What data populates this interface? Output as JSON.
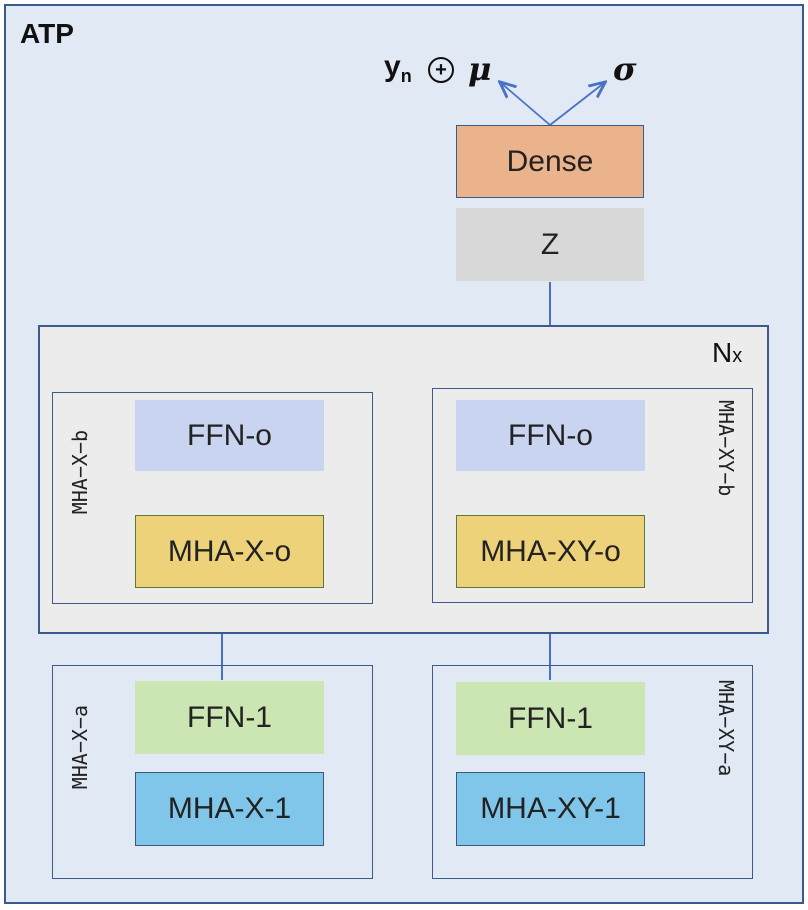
{
  "frame_title": "ATP",
  "outputs": {
    "y_base": "y",
    "y_sub": "n",
    "combine_symbol": "+",
    "mu": "μ",
    "sigma": "σ"
  },
  "dense_label": "Dense",
  "z_label": "Z",
  "nx": {
    "base": "N",
    "sub": "x"
  },
  "upper_left": {
    "side_label": "MHA−X−b",
    "ffn": "FFN-o",
    "mha": "MHA-X-o"
  },
  "upper_right": {
    "side_label": "MHA−XY−b",
    "ffn": "FFN-o",
    "mha": "MHA-XY-o"
  },
  "lower_left": {
    "side_label": "MHA−X−a",
    "ffn": "FFN-1",
    "mha": "MHA-X-1"
  },
  "lower_right": {
    "side_label": "MHA−XY−a",
    "ffn": "FFN-1",
    "mha": "MHA-XY-1"
  },
  "colors": {
    "frame_bg": "#e1e9f4",
    "border": "#3c5a8a",
    "dense": "#eab38c",
    "z": "#d8d8d8",
    "nx_bg": "#ececec",
    "ffn_o": "#c9d4f1",
    "mha_o": "#eed27a",
    "ffn_1": "#cbe6b3",
    "mha_1": "#80c6ea",
    "wire": "#4a72c4"
  }
}
